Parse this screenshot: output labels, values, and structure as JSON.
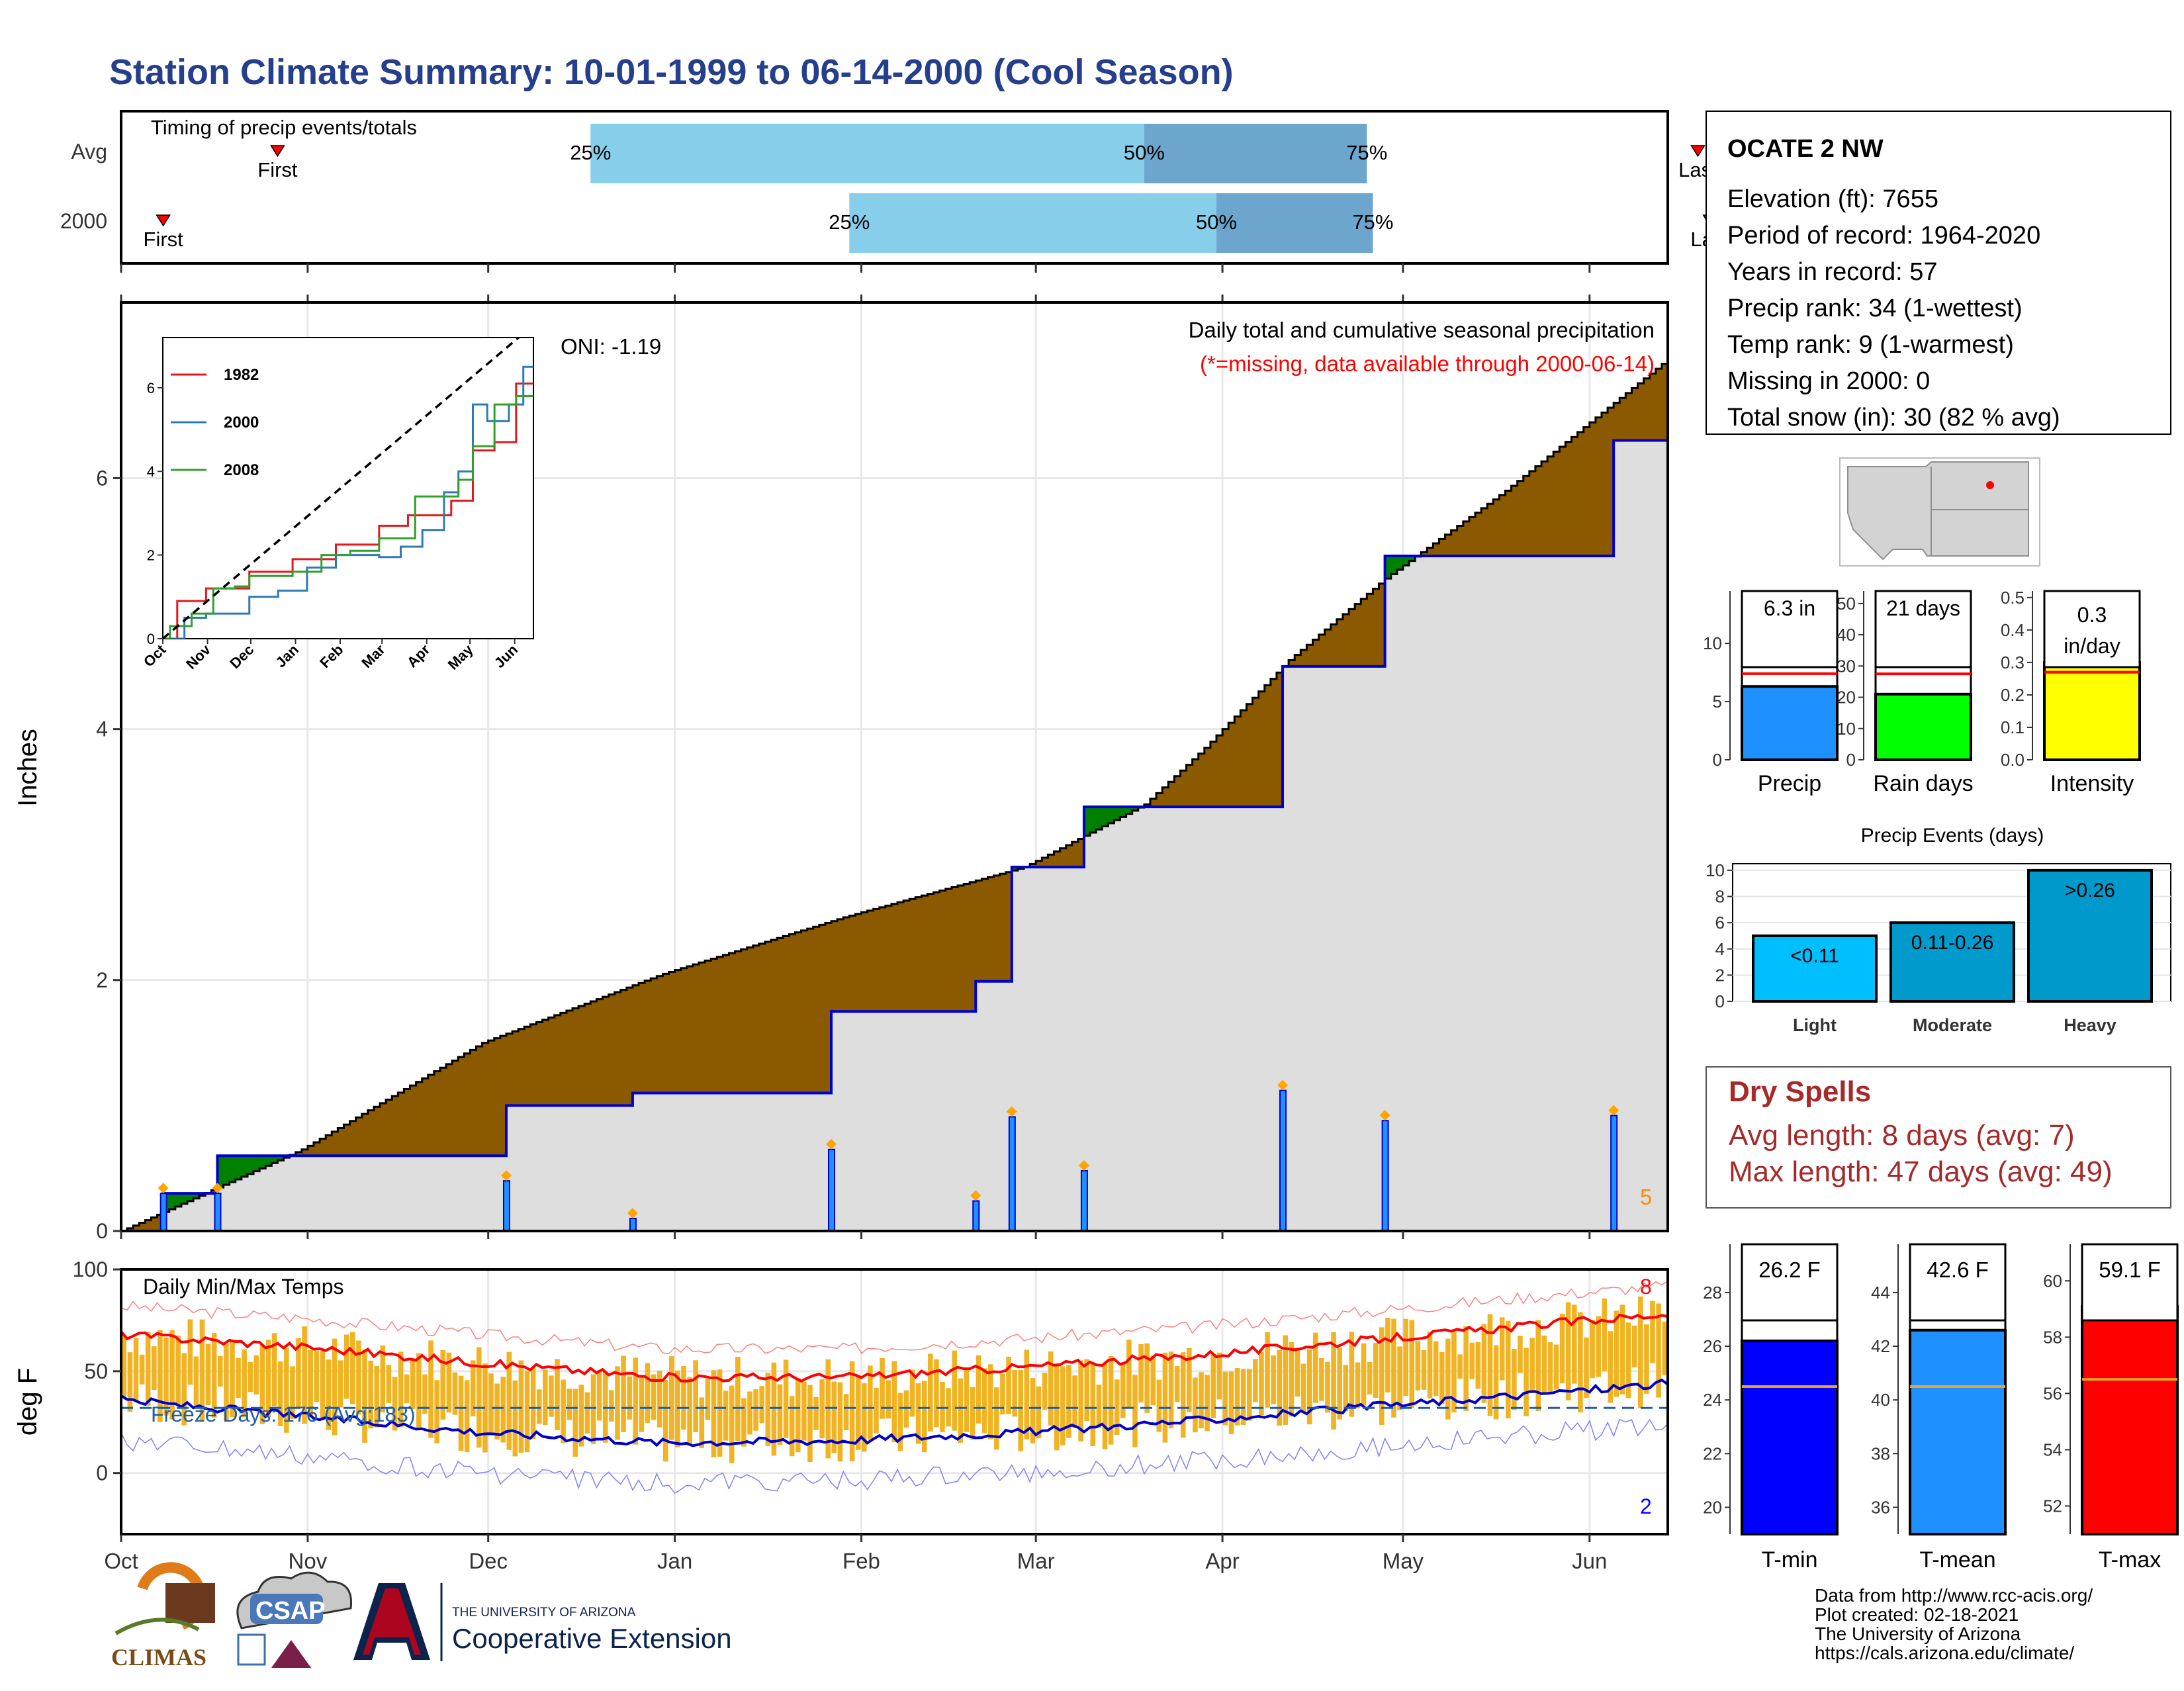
{
  "title": "Station Climate Summary: 10-01-1999 to 06-14-2000 (Cool Season)",
  "colors": {
    "title": "#253f8c",
    "dark_red": "#a52a2a",
    "precip_blue": "#1e90ff",
    "brown": "#8b5a00",
    "green": "#008000"
  },
  "timing": {
    "title": "Timing of precip events/totals",
    "rows": [
      {
        "label": "Avg",
        "first_label": "First",
        "last_label": "Last",
        "first_day": 26,
        "last_day": 262,
        "p25_day": 78,
        "p50_day": 170,
        "p75_day": 207,
        "p25_label": "25%",
        "p50_label": "50%",
        "p75_label": "75%"
      },
      {
        "label": "2000",
        "first_label": "First",
        "last_label": "Last",
        "first_day": 7,
        "last_day": 264,
        "p25_day": 121,
        "p50_day": 182,
        "p75_day": 208,
        "p25_label": "25%",
        "p50_label": "50%",
        "p75_label": "75%"
      }
    ]
  },
  "precip": {
    "ylabel": "Inches",
    "y_ticks": [
      "0",
      "2",
      "4",
      "6"
    ],
    "annotation_title": "Daily total and cumulative seasonal precipitation",
    "annotation_missing": "(*=missing, data available through 2000-06-14)",
    "oni": "ONI: -1.19",
    "max_day_label": "5"
  },
  "inset": {
    "x_ticks": [
      "Oct",
      "Nov",
      "Dec",
      "Jan",
      "Feb",
      "Mar",
      "Apr",
      "May",
      "Jun"
    ],
    "y_ticks": [
      "0",
      "2",
      "4",
      "6"
    ],
    "legend": [
      {
        "name": "1982",
        "color": "#e31a1c"
      },
      {
        "name": "2000",
        "color": "#2c7bb6"
      },
      {
        "name": "2008",
        "color": "#33a02c"
      }
    ]
  },
  "temps": {
    "ylabel": "deg F",
    "y_ticks": [
      "0",
      "50",
      "100"
    ],
    "title": "Daily Min/Max Temps",
    "freeze": "Freeze Days: 176 (Avg:183)",
    "record_high_count": "8",
    "record_low_count": "2"
  },
  "x_axis": [
    "Oct",
    "Nov",
    "Dec",
    "Jan",
    "Feb",
    "Mar",
    "Apr",
    "May",
    "Jun"
  ],
  "station": {
    "name": "OCATE 2 NW",
    "lines": [
      "Elevation (ft): 7655",
      "Period of record: 1964-2020",
      "Years in record: 57",
      "Precip rank: 34 (1-wettest)",
      "Temp rank: 9 (1-warmest)",
      "Missing in 2000: 0",
      "Total snow (in): 30 (82 % avg)"
    ]
  },
  "mini_bars": [
    {
      "label": "Precip",
      "value_label": "6.3 in",
      "value": 6.3,
      "avg": 7.4,
      "ymax": 14.5,
      "ticks": [
        "0",
        "5",
        "10"
      ],
      "tick_values": [
        0,
        5,
        10
      ],
      "color": "#1e90ff"
    },
    {
      "label": "Rain days",
      "value_label": "21 days",
      "value": 21,
      "avg": 27.5,
      "ymax": 54,
      "ticks": [
        "0",
        "10",
        "20",
        "30",
        "40",
        "50"
      ],
      "tick_values": [
        0,
        10,
        20,
        30,
        40,
        50
      ],
      "color": "#00ff00"
    },
    {
      "label": "Intensity",
      "value_label": "0.3 in/day",
      "value": 0.3,
      "avg": 0.27,
      "ymax": 0.52,
      "ticks": [
        "0.0",
        "0.1",
        "0.2",
        "0.3",
        "0.4",
        "0.5"
      ],
      "tick_values": [
        0,
        0.1,
        0.2,
        0.3,
        0.4,
        0.5
      ],
      "color": "#ffff00"
    }
  ],
  "events": {
    "title": "Precip Events (days)",
    "y_ticks": [
      "0",
      "2",
      "4",
      "6",
      "8",
      "10"
    ],
    "bars": [
      {
        "category": "Light",
        "label": "<0.11",
        "value": 5,
        "color": "#00bfff"
      },
      {
        "category": "Moderate",
        "label": "0.11-0.26",
        "value": 6,
        "color": "#009acd"
      },
      {
        "category": "Heavy",
        "label": ">0.26",
        "value": 10,
        "color": "#0099cc"
      }
    ]
  },
  "dry_spells": {
    "title": "Dry Spells",
    "avg": "Avg length: 8 days (avg: 7)",
    "max": "Max length: 47 days (avg: 49)"
  },
  "temp_bars": [
    {
      "label": "T-min",
      "value_label": "26.2 F",
      "value": 26.2,
      "avg": 24.5,
      "ymin": 19,
      "ymax": 29.8,
      "ticks": [
        "20",
        "22",
        "24",
        "26",
        "28"
      ],
      "tick_values": [
        20,
        22,
        24,
        26,
        28
      ],
      "color": "#0000ff"
    },
    {
      "label": "T-mean",
      "value_label": "42.6 F",
      "value": 42.6,
      "avg": 40.5,
      "ymin": 35,
      "ymax": 45.8,
      "ticks": [
        "36",
        "38",
        "40",
        "42",
        "44"
      ],
      "tick_values": [
        36,
        38,
        40,
        42,
        44
      ],
      "color": "#1e90ff"
    },
    {
      "label": "T-max",
      "value_label": "59.1 F",
      "value": 59.1,
      "avg": 56.5,
      "ymin": 51,
      "ymax": 61.3,
      "ticks": [
        "52",
        "54",
        "56",
        "58",
        "60"
      ],
      "tick_values": [
        52,
        54,
        56,
        58,
        60
      ],
      "color": "#ff0000"
    }
  ],
  "footer": [
    "Data from http://www.rcc-acis.org/",
    "Plot created: 02-18-2021",
    "The University of Arizona",
    "https://cals.arizona.edu/climate/"
  ],
  "logos": {
    "climas": "CLIMAS",
    "csap": "CSAP",
    "ua_small": "THE UNIVERSITY OF ARIZONA",
    "coop": "Cooperative Extension"
  },
  "chart_data": [
    {
      "type": "area",
      "title": "Daily total and cumulative seasonal precipitation",
      "ylabel": "Inches",
      "x_unit": "days since Oct 1",
      "xlim": [
        0,
        257
      ],
      "ylim": [
        0,
        7.4
      ],
      "series": [
        {
          "name": "Avg",
          "x": [
            0,
            30,
            60,
            90,
            120,
            150,
            170,
            180,
            194,
            210,
            230,
            257
          ],
          "values": [
            0,
            0.65,
            1.5,
            2.05,
            2.5,
            2.9,
            3.4,
            3.85,
            4.55,
            5.2,
            5.9,
            6.95
          ]
        },
        {
          "name": "2000",
          "x": [
            0,
            7,
            16,
            64,
            85,
            118,
            142,
            148,
            160,
            193,
            210,
            229,
            248,
            257
          ],
          "values": [
            0,
            0.3,
            0.6,
            1.0,
            1.1,
            1.75,
            1.99,
            2.9,
            3.38,
            4.5,
            5.38,
            5.38,
            6.3,
            6.3
          ]
        }
      ]
    },
    {
      "type": "line",
      "title": "Daily Min/Max Temps",
      "ylabel": "deg F",
      "ylim": [
        -30,
        100
      ],
      "series": [
        {
          "name": "Avg max",
          "x": [
            0,
            30,
            60,
            90,
            120,
            150,
            180,
            210,
            240,
            257
          ],
          "values": [
            68,
            62,
            54,
            47,
            47,
            52,
            58,
            66,
            74,
            78
          ]
        },
        {
          "name": "Avg min",
          "x": [
            0,
            30,
            60,
            90,
            120,
            150,
            180,
            210,
            240,
            257
          ],
          "values": [
            36,
            28,
            20,
            15,
            16,
            20,
            26,
            33,
            40,
            44
          ]
        }
      ]
    },
    {
      "type": "bar",
      "title": "Precip Events (days)",
      "categories": [
        "Light",
        "Moderate",
        "Heavy"
      ],
      "values": [
        5,
        6,
        10
      ]
    }
  ]
}
